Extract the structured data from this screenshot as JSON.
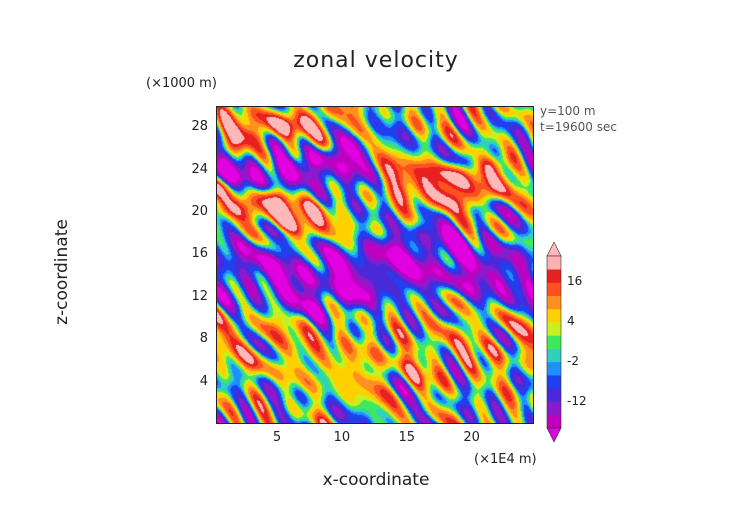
{
  "chart_data": {
    "type": "heatmap",
    "title": "zonal velocity",
    "xlabel": "x-coordinate",
    "ylabel": "z-coordinate",
    "x_unit_label": "(×1E4 m)",
    "y_unit_label": "(×1000 m)",
    "annotations": [
      "y=100 m",
      "t=19600 sec"
    ],
    "xlim": [
      0.3,
      24.8
    ],
    "ylim": [
      0,
      30
    ],
    "x_ticks": [
      5,
      10,
      15,
      20
    ],
    "y_ticks": [
      4,
      8,
      12,
      16,
      20,
      24,
      28
    ],
    "colorbar": {
      "ticks": [
        16,
        4,
        -2,
        -12
      ],
      "extend": "both",
      "levels": [
        -20,
        -16,
        -12,
        -8,
        -4,
        -2,
        0,
        2,
        4,
        8,
        12,
        16,
        20
      ],
      "colors": [
        "#c000c0",
        "#8a1acc",
        "#4a2ad8",
        "#2040f0",
        "#1e90ff",
        "#30d0c0",
        "#40e860",
        "#c8f020",
        "#ffd000",
        "#ff9020",
        "#ff5020",
        "#e82020",
        "#ffb0b0"
      ],
      "under_color": "#e000e0",
      "over_color": "#ffb8b8"
    },
    "bands": [
      {
        "z_range": [
          26.5,
          30
        ],
        "approx_value": 18,
        "x_range": [
          1.5,
          9
        ]
      },
      {
        "z_range": [
          19,
          21.5
        ],
        "approx_value": 20,
        "x_range": [
          0.5,
          8
        ]
      },
      {
        "z_range": [
          22,
          25
        ],
        "approx_value": 18,
        "x_range": [
          13,
          22
        ]
      },
      {
        "z_range": [
          22,
          26
        ],
        "approx_value": -18,
        "x_range": [
          0.5,
          12
        ]
      },
      {
        "z_range": [
          12,
          17
        ],
        "approx_value": -16,
        "x_range": [
          1,
          25
        ]
      },
      {
        "z_range": [
          4,
          9
        ],
        "approx_value": 6
      },
      {
        "z_range": [
          0,
          4
        ],
        "approx_value": 0
      }
    ]
  }
}
